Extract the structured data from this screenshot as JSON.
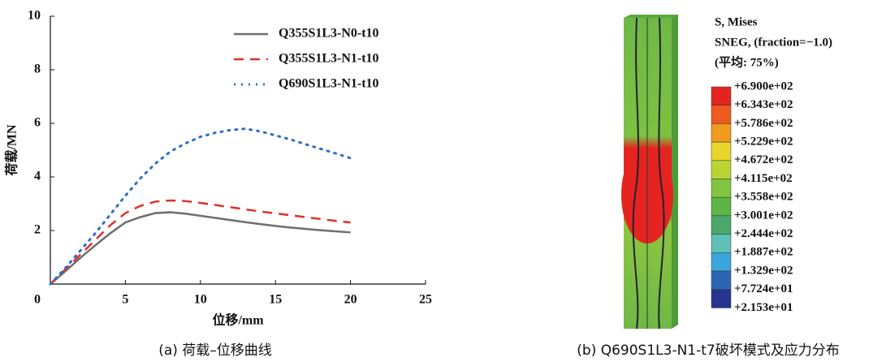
{
  "chart_data": {
    "type": "line",
    "x_label": "位移/mm",
    "y_label": "荷载/MN",
    "x": [
      0,
      1,
      2,
      3,
      4,
      5,
      6,
      7,
      8,
      9,
      10,
      11,
      12,
      13,
      14,
      15,
      16,
      17,
      18,
      19,
      20
    ],
    "series": [
      {
        "name": "Q355S1L3-N0-t10",
        "color": "#6e6e6e",
        "dash": "solid",
        "values": [
          0,
          0.48,
          0.98,
          1.45,
          1.9,
          2.3,
          2.5,
          2.65,
          2.68,
          2.63,
          2.55,
          2.47,
          2.39,
          2.31,
          2.24,
          2.17,
          2.11,
          2.06,
          2.01,
          1.97,
          1.93
        ]
      },
      {
        "name": "Q355S1L3-N1-t10",
        "color": "#e0302b",
        "dash": "dashed",
        "values": [
          0,
          0.55,
          1.1,
          1.65,
          2.2,
          2.65,
          2.92,
          3.08,
          3.12,
          3.1,
          3.03,
          2.95,
          2.87,
          2.79,
          2.71,
          2.64,
          2.57,
          2.5,
          2.43,
          2.36,
          2.3
        ]
      },
      {
        "name": "Q690S1L3-N1-t10",
        "color": "#2f6fc4",
        "dash": "dotted",
        "values": [
          0,
          0.6,
          1.25,
          1.9,
          2.6,
          3.3,
          3.95,
          4.5,
          4.95,
          5.25,
          5.5,
          5.65,
          5.75,
          5.8,
          5.7,
          5.55,
          5.4,
          5.22,
          5.05,
          4.88,
          4.7
        ]
      }
    ],
    "xlim": [
      0,
      25
    ],
    "xticks": [
      0,
      5,
      10,
      15,
      20,
      25
    ],
    "ylim": [
      0,
      10
    ],
    "yticks": [
      2,
      4,
      6,
      8,
      10
    ],
    "legend": "upper right",
    "grid": false
  },
  "contour_legend": {
    "title": [
      "S, Mises",
      "SNEG, (fraction=−1.0)",
      "(平均: 75%)"
    ],
    "labels": [
      "+6.900e+02",
      "+6.343e+02",
      "+5.786e+02",
      "+5.229e+02",
      "+4.672e+02",
      "+4.115e+02",
      "+3.558e+02",
      "+3.001e+02",
      "+2.444e+02",
      "+1.887e+02",
      "+1.329e+02",
      "+7.724e+01",
      "+2.153e+01"
    ],
    "colors": [
      "#e52421",
      "#ee5a1f",
      "#f09a1e",
      "#e8d62c",
      "#b9d534",
      "#82c441",
      "#5db546",
      "#4aa96a",
      "#5fc0b8",
      "#3aa7dc",
      "#2b66b5",
      "#27358e"
    ]
  },
  "captions": [
    "(a) 荷载–位移曲线",
    "(b) Q690S1L3-N1-t7破坏模式及应力分布"
  ]
}
